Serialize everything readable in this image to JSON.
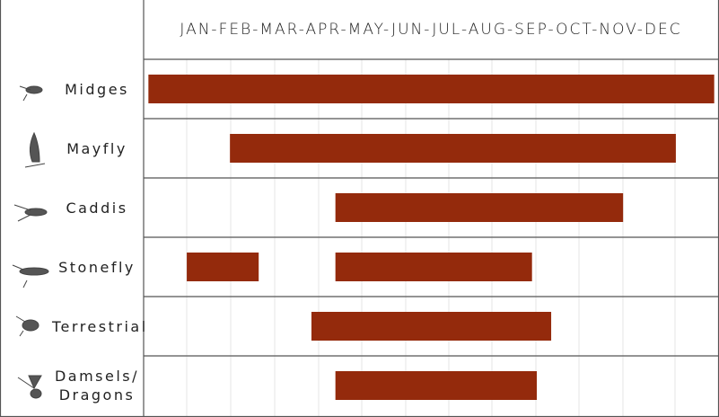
{
  "chart_data": {
    "type": "range-bar",
    "title": "JAN-FEB-MAR-APR-MAY-JUN-JUL-AUG-SEP-OCT-NOV-DEC",
    "categories": [
      "Midges",
      "Mayfly",
      "Caddis",
      "Stonefly",
      "Terrestrial",
      "Damsels/ Dragons"
    ],
    "ranges": [
      [
        [
          0.1,
          11.9
        ]
      ],
      [
        [
          1.8,
          11.1
        ]
      ],
      [
        [
          4.0,
          10.0
        ]
      ],
      [
        [
          0.9,
          2.4
        ],
        [
          4.0,
          8.1
        ]
      ],
      [
        [
          3.5,
          8.5
        ]
      ],
      [
        [
          4.0,
          8.2
        ]
      ]
    ],
    "color": "#942a0c",
    "xlim": [
      0,
      12
    ]
  }
}
